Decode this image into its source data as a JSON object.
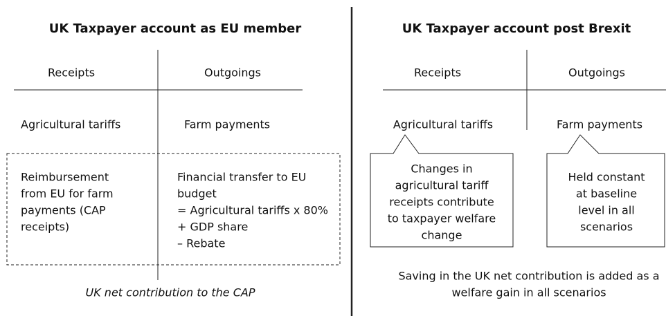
{
  "left": {
    "title": "UK Taxpayer account as EU member",
    "receipts": "Receipts",
    "outgoings": "Outgoings",
    "receipt_item": "Agricultural tariffs",
    "outgoing_item": "Farm payments",
    "box_left": [
      "Reimbursement",
      "from EU for farm",
      "payments (CAP",
      "receipts)"
    ],
    "box_right": [
      "Financial transfer to EU",
      "budget",
      "= Agricultural tariffs x 80%",
      "+ GDP share",
      "– Rebate"
    ],
    "caption": "UK net contribution to the CAP"
  },
  "right": {
    "title": "UK Taxpayer account post Brexit",
    "receipts": "Receipts",
    "outgoings": "Outgoings",
    "receipt_item": "Agricultural tariffs",
    "outgoing_item": "Farm payments",
    "callout_left": [
      "Changes in",
      "agricultural tariff",
      "receipts contribute",
      "to taxpayer welfare",
      "change"
    ],
    "callout_right": [
      "Held constant",
      "at baseline",
      "level in all",
      "scenarios"
    ],
    "footer": [
      "Saving in the UK net contribution is added as a",
      "welfare gain in all scenarios"
    ]
  }
}
